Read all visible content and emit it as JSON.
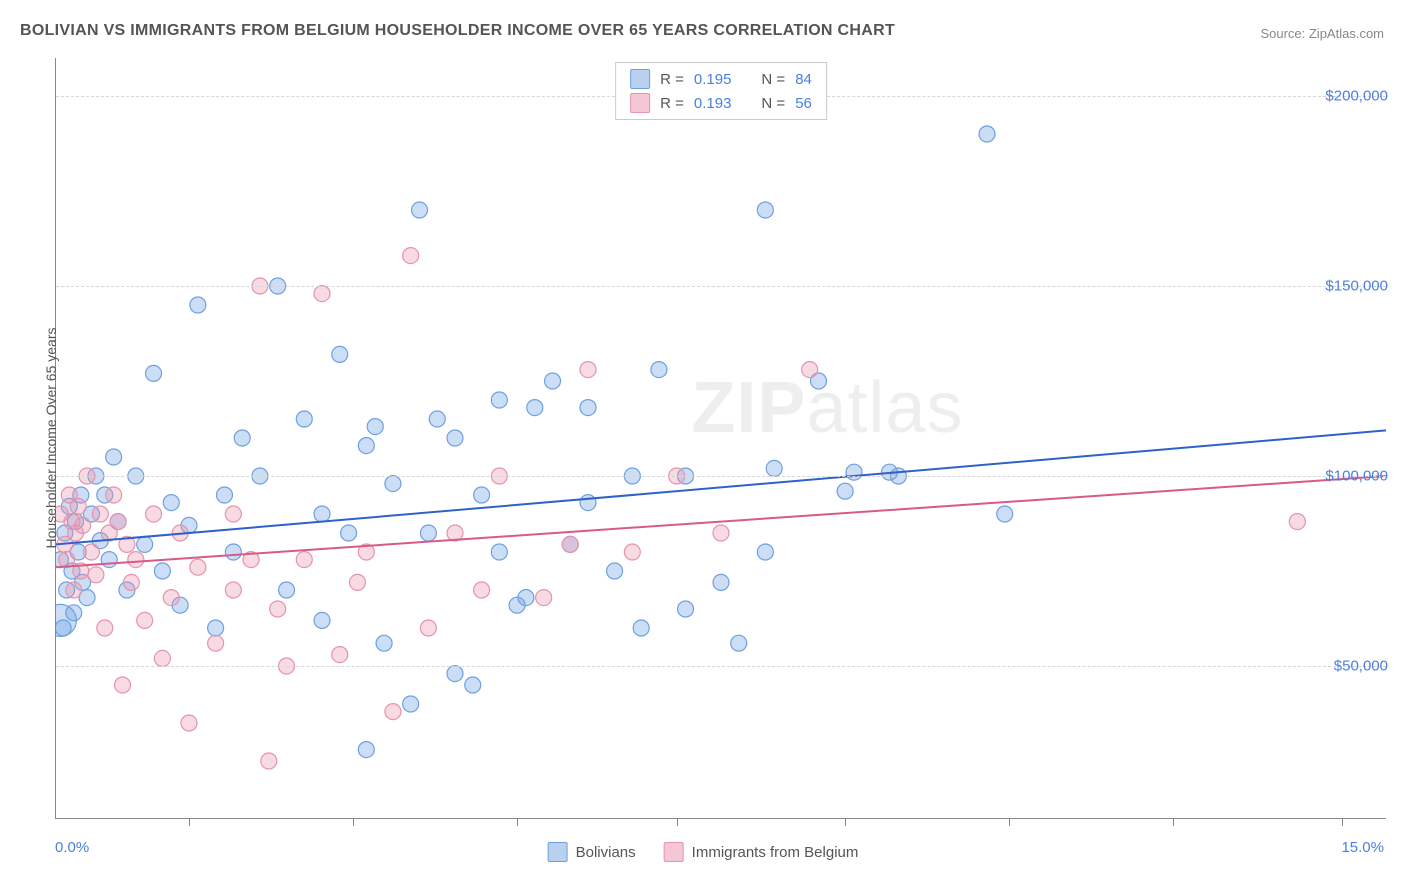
{
  "title": "BOLIVIAN VS IMMIGRANTS FROM BELGIUM HOUSEHOLDER INCOME OVER 65 YEARS CORRELATION CHART",
  "source_label": "Source: ZipAtlas.com",
  "watermark_a": "ZIP",
  "watermark_b": "atlas",
  "chart": {
    "type": "scatter",
    "ylabel": "Householder Income Over 65 years",
    "xlim": [
      0,
      15
    ],
    "ylim": [
      10000,
      210000
    ],
    "x_ticks": [
      1.5,
      3.35,
      5.2,
      7.0,
      8.9,
      10.75,
      12.6,
      14.5
    ],
    "y_gridlines": [
      50000,
      100000,
      150000,
      200000
    ],
    "y_tick_labels": [
      "$50,000",
      "$100,000",
      "$150,000",
      "$200,000"
    ],
    "xmin_label": "0.0%",
    "xmax_label": "15.0%",
    "background_color": "#ffffff",
    "grid_color": "#d6d6d6",
    "axis_color": "#888888",
    "series": [
      {
        "name": "Bolivians",
        "label": "Bolivians",
        "fill": "rgba(110,160,225,0.35)",
        "stroke": "#6ea0e1",
        "swatch_fill": "#b9d1ee",
        "swatch_border": "#6ea0e1",
        "R": "0.195",
        "N": "84",
        "regression": {
          "x1": 0,
          "y1": 82000,
          "x2": 15,
          "y2": 112000,
          "color": "#2f62c9",
          "width": 2
        },
        "marker_r": 8,
        "points": [
          [
            0.05,
            78000
          ],
          [
            0.08,
            60000
          ],
          [
            0.1,
            85000
          ],
          [
            0.12,
            70000
          ],
          [
            0.15,
            92000
          ],
          [
            0.18,
            75000
          ],
          [
            0.2,
            64000
          ],
          [
            0.22,
            88000
          ],
          [
            0.25,
            80000
          ],
          [
            0.28,
            95000
          ],
          [
            0.3,
            72000
          ],
          [
            0.35,
            68000
          ],
          [
            0.4,
            90000
          ],
          [
            0.45,
            100000
          ],
          [
            0.5,
            83000
          ],
          [
            0.55,
            95000
          ],
          [
            0.6,
            78000
          ],
          [
            0.65,
            105000
          ],
          [
            0.7,
            88000
          ],
          [
            0.8,
            70000
          ],
          [
            0.9,
            100000
          ],
          [
            1.0,
            82000
          ],
          [
            1.1,
            127000
          ],
          [
            1.2,
            75000
          ],
          [
            1.3,
            93000
          ],
          [
            1.4,
            66000
          ],
          [
            1.5,
            87000
          ],
          [
            1.6,
            145000
          ],
          [
            1.8,
            60000
          ],
          [
            1.9,
            95000
          ],
          [
            2.0,
            80000
          ],
          [
            2.1,
            110000
          ],
          [
            2.3,
            100000
          ],
          [
            2.5,
            150000
          ],
          [
            2.6,
            70000
          ],
          [
            2.8,
            115000
          ],
          [
            3.0,
            62000
          ],
          [
            3.0,
            90000
          ],
          [
            3.2,
            132000
          ],
          [
            3.3,
            85000
          ],
          [
            3.5,
            108000
          ],
          [
            3.5,
            28000
          ],
          [
            3.6,
            113000
          ],
          [
            3.7,
            56000
          ],
          [
            3.8,
            98000
          ],
          [
            4.0,
            40000
          ],
          [
            4.1,
            170000
          ],
          [
            4.2,
            85000
          ],
          [
            4.3,
            115000
          ],
          [
            4.5,
            110000
          ],
          [
            4.5,
            48000
          ],
          [
            4.7,
            45000
          ],
          [
            4.8,
            95000
          ],
          [
            5.0,
            80000
          ],
          [
            5.0,
            120000
          ],
          [
            5.2,
            66000
          ],
          [
            5.3,
            68000
          ],
          [
            5.4,
            118000
          ],
          [
            5.6,
            125000
          ],
          [
            5.8,
            82000
          ],
          [
            6.0,
            93000
          ],
          [
            6.0,
            118000
          ],
          [
            6.3,
            75000
          ],
          [
            6.5,
            100000
          ],
          [
            6.6,
            60000
          ],
          [
            6.8,
            128000
          ],
          [
            7.1,
            65000
          ],
          [
            7.1,
            100000
          ],
          [
            7.5,
            72000
          ],
          [
            7.7,
            56000
          ],
          [
            8.0,
            80000
          ],
          [
            8.0,
            170000
          ],
          [
            8.1,
            102000
          ],
          [
            8.6,
            125000
          ],
          [
            8.9,
            96000
          ],
          [
            9.0,
            101000
          ],
          [
            9.4,
            101000
          ],
          [
            9.5,
            100000
          ],
          [
            10.5,
            190000
          ],
          [
            10.7,
            90000
          ]
        ],
        "extra": [
          {
            "x": 0.05,
            "y": 62000,
            "r": 16
          }
        ]
      },
      {
        "name": "Immigrants from Belgium",
        "label": "Immigrants from Belgium",
        "fill": "rgba(235,150,175,0.35)",
        "stroke": "#e693ad",
        "swatch_fill": "#f5c7d4",
        "swatch_border": "#e693ad",
        "R": "0.193",
        "N": "56",
        "regression": {
          "x1": 0,
          "y1": 76000,
          "x2": 15,
          "y2": 100000,
          "color": "#d85a8a",
          "width": 2
        },
        "marker_r": 8,
        "points": [
          [
            0.05,
            90000
          ],
          [
            0.1,
            82000
          ],
          [
            0.12,
            78000
          ],
          [
            0.15,
            95000
          ],
          [
            0.18,
            88000
          ],
          [
            0.2,
            70000
          ],
          [
            0.22,
            85000
          ],
          [
            0.25,
            92000
          ],
          [
            0.28,
            75000
          ],
          [
            0.3,
            87000
          ],
          [
            0.35,
            100000
          ],
          [
            0.4,
            80000
          ],
          [
            0.45,
            74000
          ],
          [
            0.5,
            90000
          ],
          [
            0.55,
            60000
          ],
          [
            0.6,
            85000
          ],
          [
            0.65,
            95000
          ],
          [
            0.7,
            88000
          ],
          [
            0.75,
            45000
          ],
          [
            0.8,
            82000
          ],
          [
            0.85,
            72000
          ],
          [
            0.9,
            78000
          ],
          [
            1.0,
            62000
          ],
          [
            1.1,
            90000
          ],
          [
            1.2,
            52000
          ],
          [
            1.3,
            68000
          ],
          [
            1.4,
            85000
          ],
          [
            1.5,
            35000
          ],
          [
            1.6,
            76000
          ],
          [
            1.8,
            56000
          ],
          [
            2.0,
            70000
          ],
          [
            2.0,
            90000
          ],
          [
            2.2,
            78000
          ],
          [
            2.3,
            150000
          ],
          [
            2.4,
            25000
          ],
          [
            2.5,
            65000
          ],
          [
            2.6,
            50000
          ],
          [
            2.8,
            78000
          ],
          [
            3.0,
            148000
          ],
          [
            3.2,
            53000
          ],
          [
            3.4,
            72000
          ],
          [
            3.5,
            80000
          ],
          [
            3.8,
            38000
          ],
          [
            4.0,
            158000
          ],
          [
            4.2,
            60000
          ],
          [
            4.5,
            85000
          ],
          [
            4.8,
            70000
          ],
          [
            5.0,
            100000
          ],
          [
            5.5,
            68000
          ],
          [
            5.8,
            82000
          ],
          [
            6.0,
            128000
          ],
          [
            6.5,
            80000
          ],
          [
            7.0,
            100000
          ],
          [
            7.5,
            85000
          ],
          [
            8.5,
            128000
          ],
          [
            14.0,
            88000
          ]
        ]
      }
    ]
  },
  "legend_top": {
    "R_label": "R =",
    "N_label": "N ="
  }
}
